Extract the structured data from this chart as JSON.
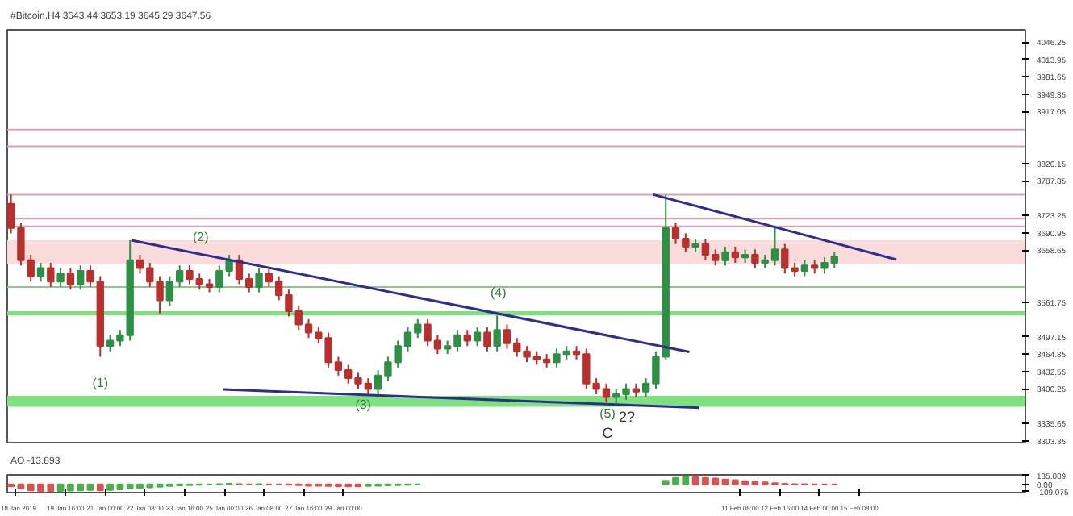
{
  "chart_data": [
    {
      "type": "candlestick",
      "title": "#Bitcoin,H4 3643.44 3653.19 3645.29 3647.56",
      "x": [
        "2019-01-17T20:00",
        "2019-01-18T04:00",
        "2019-01-18T12:00",
        "2019-01-18T20:00",
        "2019-01-19T04:00",
        "2019-01-19T12:00",
        "2019-01-19T20:00",
        "2019-01-20T04:00",
        "2019-01-20T12:00",
        "2019-01-20T20:00",
        "2019-01-21T04:00",
        "2019-01-21T12:00",
        "2019-01-21T20:00",
        "2019-01-22T04:00",
        "2019-01-22T12:00",
        "2019-01-22T20:00",
        "2019-01-23T04:00",
        "2019-01-23T12:00",
        "2019-01-23T20:00",
        "2019-01-24T04:00",
        "2019-01-24T12:00",
        "2019-01-24T20:00",
        "2019-01-25T04:00",
        "2019-01-25T12:00",
        "2019-01-25T20:00",
        "2019-01-26T04:00",
        "2019-01-26T12:00",
        "2019-01-26T20:00",
        "2019-01-27T04:00",
        "2019-01-27T12:00",
        "2019-01-27T20:00",
        "2019-01-28T04:00",
        "2019-01-28T12:00",
        "2019-01-28T20:00",
        "2019-01-29T04:00",
        "2019-01-29T12:00",
        "2019-01-29T20:00",
        "2019-01-30T04:00",
        "2019-01-30T12:00",
        "2019-01-30T20:00",
        "2019-01-31T04:00",
        "2019-01-31T12:00",
        "2019-01-31T20:00",
        "2019-02-01T04:00",
        "2019-02-01T12:00",
        "2019-02-01T20:00",
        "2019-02-02T04:00",
        "2019-02-02T12:00",
        "2019-02-02T20:00",
        "2019-02-03T04:00",
        "2019-02-03T12:00",
        "2019-02-03T20:00",
        "2019-02-04T04:00",
        "2019-02-04T12:00",
        "2019-02-04T20:00",
        "2019-02-05T04:00",
        "2019-02-05T12:00",
        "2019-02-05T20:00",
        "2019-02-06T04:00",
        "2019-02-06T12:00",
        "2019-02-06T20:00",
        "2019-02-07T04:00",
        "2019-02-07T12:00",
        "2019-02-07T20:00",
        "2019-02-08T04:00",
        "2019-02-08T12:00",
        "2019-02-08T20:00",
        "2019-02-09T04:00",
        "2019-02-09T12:00",
        "2019-02-09T20:00",
        "2019-02-10T04:00",
        "2019-02-10T12:00",
        "2019-02-10T20:00",
        "2019-02-11T04:00",
        "2019-02-11T12:00",
        "2019-02-11T20:00",
        "2019-02-12T04:00",
        "2019-02-12T12:00",
        "2019-02-12T20:00",
        "2019-02-13T04:00",
        "2019-02-13T12:00",
        "2019-02-13T20:00",
        "2019-02-14T04:00",
        "2019-02-14T12:00"
      ],
      "ohlc": [
        [
          3745,
          3762,
          3690,
          3700
        ],
        [
          3700,
          3710,
          3630,
          3640
        ],
        [
          3640,
          3650,
          3600,
          3610
        ],
        [
          3610,
          3635,
          3600,
          3625
        ],
        [
          3625,
          3635,
          3590,
          3600
        ],
        [
          3600,
          3625,
          3590,
          3615
        ],
        [
          3615,
          3625,
          3585,
          3595
        ],
        [
          3595,
          3630,
          3585,
          3620
        ],
        [
          3620,
          3630,
          3590,
          3600
        ],
        [
          3600,
          3610,
          3460,
          3480
        ],
        [
          3480,
          3500,
          3470,
          3490
        ],
        [
          3490,
          3510,
          3480,
          3500
        ],
        [
          3500,
          3677,
          3490,
          3640
        ],
        [
          3640,
          3650,
          3615,
          3625
        ],
        [
          3625,
          3635,
          3590,
          3600
        ],
        [
          3600,
          3610,
          3540,
          3565
        ],
        [
          3565,
          3610,
          3555,
          3600
        ],
        [
          3600,
          3630,
          3590,
          3620
        ],
        [
          3620,
          3630,
          3595,
          3605
        ],
        [
          3605,
          3615,
          3585,
          3595
        ],
        [
          3595,
          3605,
          3580,
          3590
        ],
        [
          3590,
          3630,
          3580,
          3620
        ],
        [
          3620,
          3650,
          3610,
          3640
        ],
        [
          3640,
          3650,
          3595,
          3605
        ],
        [
          3605,
          3615,
          3580,
          3590
        ],
        [
          3590,
          3625,
          3580,
          3615
        ],
        [
          3615,
          3625,
          3590,
          3600
        ],
        [
          3600,
          3610,
          3565,
          3575
        ],
        [
          3575,
          3585,
          3535,
          3545
        ],
        [
          3545,
          3555,
          3510,
          3520
        ],
        [
          3520,
          3530,
          3495,
          3505
        ],
        [
          3505,
          3515,
          3485,
          3495
        ],
        [
          3495,
          3505,
          3440,
          3450
        ],
        [
          3450,
          3460,
          3425,
          3435
        ],
        [
          3435,
          3445,
          3410,
          3420
        ],
        [
          3420,
          3430,
          3400,
          3410
        ],
        [
          3410,
          3420,
          3388,
          3400
        ],
        [
          3400,
          3435,
          3390,
          3425
        ],
        [
          3425,
          3460,
          3415,
          3450
        ],
        [
          3450,
          3490,
          3440,
          3480
        ],
        [
          3480,
          3515,
          3470,
          3505
        ],
        [
          3505,
          3530,
          3495,
          3520
        ],
        [
          3520,
          3530,
          3480,
          3490
        ],
        [
          3490,
          3500,
          3465,
          3475
        ],
        [
          3475,
          3490,
          3465,
          3480
        ],
        [
          3480,
          3510,
          3470,
          3500
        ],
        [
          3500,
          3510,
          3480,
          3490
        ],
        [
          3490,
          3515,
          3480,
          3505
        ],
        [
          3505,
          3515,
          3470,
          3480
        ],
        [
          3480,
          3537,
          3470,
          3510
        ],
        [
          3510,
          3520,
          3475,
          3485
        ],
        [
          3485,
          3495,
          3460,
          3470
        ],
        [
          3470,
          3480,
          3450,
          3460
        ],
        [
          3460,
          3470,
          3445,
          3455
        ],
        [
          3455,
          3465,
          3440,
          3450
        ],
        [
          3450,
          3475,
          3440,
          3465
        ],
        [
          3465,
          3480,
          3455,
          3470
        ],
        [
          3470,
          3480,
          3455,
          3465
        ],
        [
          3465,
          3475,
          3400,
          3410
        ],
        [
          3410,
          3420,
          3390,
          3400
        ],
        [
          3400,
          3410,
          3375,
          3385
        ],
        [
          3385,
          3400,
          3372,
          3390
        ],
        [
          3390,
          3410,
          3380,
          3400
        ],
        [
          3400,
          3410,
          3385,
          3395
        ],
        [
          3395,
          3420,
          3385,
          3410
        ],
        [
          3410,
          3470,
          3400,
          3460
        ],
        [
          3460,
          3762,
          3455,
          3700
        ],
        [
          3700,
          3710,
          3670,
          3680
        ],
        [
          3680,
          3690,
          3655,
          3665
        ],
        [
          3665,
          3680,
          3655,
          3670
        ],
        [
          3670,
          3680,
          3640,
          3650
        ],
        [
          3650,
          3660,
          3630,
          3640
        ],
        [
          3640,
          3665,
          3630,
          3655
        ],
        [
          3655,
          3665,
          3635,
          3645
        ],
        [
          3645,
          3660,
          3635,
          3650
        ],
        [
          3650,
          3660,
          3625,
          3635
        ],
        [
          3635,
          3650,
          3625,
          3640
        ],
        [
          3640,
          3700,
          3630,
          3660
        ],
        [
          3660,
          3670,
          3615,
          3625
        ],
        [
          3625,
          3635,
          3610,
          3620
        ],
        [
          3620,
          3640,
          3610,
          3630
        ],
        [
          3630,
          3640,
          3615,
          3625
        ],
        [
          3625,
          3645,
          3615,
          3635
        ],
        [
          3635,
          3655,
          3625,
          3647
        ]
      ],
      "colors": [
        "#b8312f",
        "#b8312f",
        "#b8312f",
        "#2f8f46",
        "#b8312f",
        "#2f8f46",
        "#b8312f",
        "#2f8f46",
        "#b8312f",
        "#b8312f",
        "#2f8f46",
        "#2f8f46",
        "#2f8f46",
        "#b8312f",
        "#b8312f",
        "#b8312f",
        "#2f8f46",
        "#2f8f46",
        "#b8312f",
        "#b8312f",
        "#b8312f",
        "#2f8f46",
        "#2f8f46",
        "#b8312f",
        "#b8312f",
        "#2f8f46",
        "#b8312f",
        "#b8312f",
        "#b8312f",
        "#b8312f",
        "#b8312f",
        "#b8312f",
        "#b8312f",
        "#b8312f",
        "#b8312f",
        "#b8312f",
        "#b8312f",
        "#2f8f46",
        "#2f8f46",
        "#2f8f46",
        "#2f8f46",
        "#2f8f46",
        "#b8312f",
        "#b8312f",
        "#2f8f46",
        "#2f8f46",
        "#b8312f",
        "#2f8f46",
        "#b8312f",
        "#2f8f46",
        "#b8312f",
        "#b8312f",
        "#b8312f",
        "#b8312f",
        "#b8312f",
        "#2f8f46",
        "#2f8f46",
        "#b8312f",
        "#b8312f",
        "#b8312f",
        "#b8312f",
        "#2f8f46",
        "#2f8f46",
        "#b8312f",
        "#2f8f46",
        "#2f8f46",
        "#2f8f46",
        "#b8312f",
        "#b8312f",
        "#2f8f46",
        "#b8312f",
        "#b8312f",
        "#2f8f46",
        "#b8312f",
        "#2f8f46",
        "#b8312f",
        "#2f8f46",
        "#2f8f46",
        "#b8312f",
        "#b8312f",
        "#2f8f46",
        "#b8312f",
        "#2f8f46",
        "#2f8f46"
      ],
      "series": [
        {
          "type": "line",
          "color": "#2e2e8c",
          "x": [
            "2019-01-21T21:00",
            "2019-02-09T15:00"
          ],
          "values": [
            3677,
            3469
          ]
        },
        {
          "type": "line",
          "color": "#2e2e8c",
          "x": [
            "2019-01-24T23:00",
            "2019-02-09T23:00"
          ],
          "values": [
            3399,
            3365
          ]
        },
        {
          "type": "line",
          "color": "#2e2e8c",
          "x": [
            "2019-02-08T10:00",
            "2019-02-16T14:00"
          ],
          "values": [
            3762,
            3641
          ]
        }
      ],
      "ref_lines": [
        {
          "axis": "y",
          "value": 3883,
          "color": "#d8a4ad"
        },
        {
          "axis": "y",
          "value": 3852,
          "color": "#d8a4ad"
        },
        {
          "axis": "y",
          "value": 3762,
          "color": "#d8a4ad"
        },
        {
          "axis": "y",
          "value": 3717,
          "color": "#d8a4ad"
        },
        {
          "axis": "y",
          "value": 3703,
          "color": "#d8a4ad"
        },
        {
          "axis": "y",
          "value": 3590,
          "color": "#8cc88c"
        }
      ],
      "bands": [
        {
          "axis": "y",
          "from": 3632,
          "to": 3677,
          "color": "#fbdcdc"
        },
        {
          "axis": "y",
          "from": 3537,
          "to": 3545,
          "color": "#7fe07f"
        },
        {
          "axis": "y",
          "from": 3367,
          "to": 3387,
          "color": "#7fe07f"
        }
      ],
      "annotations": [
        {
          "text": "(1)",
          "x": "2019-01-20T20:00",
          "y": 3460
        },
        {
          "text": "(2)",
          "x": "2019-01-24T05:00",
          "y": 3683
        },
        {
          "text": "(3)",
          "x": "2019-01-29T16:00",
          "y": 3371
        },
        {
          "text": "(4)",
          "x": "2019-02-03T05:00",
          "y": 3579
        },
        {
          "text": "(5)",
          "x": "2019-02-06T21:00",
          "y": 3354
        },
        "2?",
        "C"
      ],
      "xlim": [
        "2019-01-17T17:00",
        "2019-02-20T22:00"
      ],
      "ylim": [
        3300,
        4069
      ],
      "yticks": [
        4046.25,
        4013.95,
        3981.65,
        3949.35,
        3917.05,
        3820.15,
        3787.85,
        3723.25,
        3690.95,
        3658.65,
        3561.75,
        3497.15,
        3464.85,
        3432.55,
        3400.25,
        3335.65,
        3303.35
      ],
      "tick_labels": "y"
    },
    {
      "type": "bar",
      "title": "AO -13.893",
      "x": [
        "2019-01-17T20:00",
        "2019-01-18T04:00",
        "2019-01-18T12:00",
        "2019-01-18T20:00",
        "2019-01-19T04:00",
        "2019-01-19T12:00",
        "2019-01-19T20:00",
        "2019-01-20T04:00",
        "2019-01-20T12:00",
        "2019-01-20T20:00",
        "2019-01-21T04:00",
        "2019-01-21T12:00",
        "2019-01-21T20:00",
        "2019-01-22T04:00",
        "2019-01-22T12:00",
        "2019-01-22T20:00",
        "2019-01-23T04:00",
        "2019-01-23T12:00",
        "2019-01-23T20:00",
        "2019-01-24T04:00",
        "2019-01-24T12:00",
        "2019-01-24T20:00",
        "2019-01-25T04:00",
        "2019-01-25T12:00",
        "2019-01-25T20:00",
        "2019-01-26T04:00",
        "2019-01-26T12:00",
        "2019-01-26T20:00",
        "2019-01-27T04:00",
        "2019-01-27T12:00",
        "2019-01-27T20:00",
        "2019-01-28T04:00",
        "2019-01-28T12:00",
        "2019-01-28T20:00",
        "2019-01-29T04:00",
        "2019-01-29T12:00",
        "2019-01-29T20:00",
        "2019-01-30T04:00",
        "2019-01-30T12:00",
        "2019-01-30T20:00",
        "2019-01-31T04:00",
        "2019-01-31T12:00",
        "2019-01-31T20:00",
        "2019-02-01T04:00",
        "2019-02-01T12:00",
        "2019-02-01T20:00",
        "2019-02-02T04:00",
        "2019-02-02T12:00",
        "2019-02-02T20:00",
        "2019-02-03T04:00",
        "2019-02-03T12:00",
        "2019-02-03T20:00",
        "2019-02-04T04:00",
        "2019-02-04T12:00",
        "2019-02-04T20:00",
        "2019-02-05T04:00",
        "2019-02-05T12:00",
        "2019-02-05T20:00",
        "2019-02-06T04:00",
        "2019-02-06T12:00",
        "2019-02-06T20:00",
        "2019-02-07T04:00",
        "2019-02-07T12:00",
        "2019-02-07T20:00",
        "2019-02-08T04:00",
        "2019-02-08T12:00",
        "2019-02-08T20:00",
        "2019-02-09T04:00",
        "2019-02-09T12:00",
        "2019-02-09T20:00",
        "2019-02-10T04:00",
        "2019-02-10T12:00",
        "2019-02-10T20:00",
        "2019-02-11T04:00",
        "2019-02-11T12:00",
        "2019-02-11T20:00",
        "2019-02-12T04:00",
        "2019-02-12T12:00",
        "2019-02-12T20:00",
        "2019-02-13T04:00",
        "2019-02-13T12:00",
        "2019-02-13T20:00",
        "2019-02-14T04:00",
        "2019-02-14T12:00"
      ],
      "values": [
        -30,
        -60,
        -90,
        -100,
        -105,
        -100,
        -95,
        -90,
        -85,
        -90,
        -85,
        -75,
        -65,
        -55,
        -45,
        -35,
        -25,
        -15,
        -10,
        -5,
        0,
        5,
        10,
        5,
        0,
        5,
        0,
        0,
        -5,
        -10,
        -20,
        -20,
        -25,
        -30,
        -30,
        -30,
        -25,
        -20,
        -15,
        -10,
        -5,
        0,
        null,
        null,
        null,
        null,
        null,
        null,
        null,
        null,
        null,
        null,
        null,
        null,
        null,
        null,
        null,
        null,
        null,
        null,
        null,
        null,
        null,
        null,
        null,
        null,
        55,
        100,
        120,
        110,
        100,
        90,
        75,
        65,
        50,
        40,
        30,
        20,
        10,
        5,
        5,
        0,
        0,
        0
      ],
      "colors": [
        "#d9534f",
        "#d9534f",
        "#d9534f",
        "#d9534f",
        "#d9534f",
        "#4cae4c",
        "#4cae4c",
        "#4cae4c",
        "#4cae4c",
        "#d9534f",
        "#4cae4c",
        "#4cae4c",
        "#4cae4c",
        "#4cae4c",
        "#4cae4c",
        "#4cae4c",
        "#4cae4c",
        "#4cae4c",
        "#4cae4c",
        "#4cae4c",
        "#4cae4c",
        "#4cae4c",
        "#4cae4c",
        "#d9534f",
        "#d9534f",
        "#4cae4c",
        "#d9534f",
        "#d9534f",
        "#d9534f",
        "#d9534f",
        "#d9534f",
        "#d9534f",
        "#d9534f",
        "#d9534f",
        "#d9534f",
        "#d9534f",
        "#4cae4c",
        "#4cae4c",
        "#4cae4c",
        "#4cae4c",
        "#4cae4c",
        "#4cae4c",
        null,
        null,
        null,
        null,
        null,
        null,
        null,
        null,
        null,
        null,
        null,
        null,
        null,
        null,
        null,
        null,
        null,
        null,
        null,
        null,
        null,
        null,
        null,
        null,
        "#4cae4c",
        "#4cae4c",
        "#4cae4c",
        "#d9534f",
        "#d9534f",
        "#d9534f",
        "#d9534f",
        "#d9534f",
        "#d9534f",
        "#d9534f",
        "#d9534f",
        "#d9534f",
        "#d9534f",
        "#d9534f",
        "#d9534f",
        "#d9534f",
        "#d9534f",
        "#d9534f"
      ],
      "xlim": [
        "2019-01-17T17:00",
        "2019-02-20T22:00"
      ],
      "xticks": [
        {
          "value": "2019-01-18T00:00",
          "label": "18 Jan 2019"
        },
        {
          "value": "2019-01-19T16:00",
          "label": "19 Jan 16:00"
        },
        {
          "value": "2019-01-21T00:00",
          "label": "21 Jan 00:00"
        },
        {
          "value": "2019-01-22T08:00",
          "label": "22 Jan 08:00"
        },
        {
          "value": "2019-01-23T16:00",
          "label": "23 Jan 16:00"
        },
        {
          "value": "2019-01-25T00:00",
          "label": "25 Jan 00:00"
        },
        {
          "value": "2019-01-26T08:00",
          "label": "26 Jan 08:00"
        },
        {
          "value": "2019-01-27T16:00",
          "label": "27 Jan 16:00"
        },
        {
          "value": "2019-01-29T00:00",
          "label": "29 Jan 00:00"
        },
        {
          "value": "2019-02-11T08:00",
          "label": "11 Feb 08:00"
        },
        {
          "value": "2019-02-12T16:00",
          "label": "12 Feb 16:00"
        },
        {
          "value": "2019-02-14T00:00",
          "label": "14 Feb 00:00"
        },
        {
          "value": "2019-02-15T08:00",
          "label": "15 Feb 08:00"
        }
      ],
      "ylim": [
        -125,
        145
      ],
      "yticks": [
        135.089,
        {
          "value": 0,
          "label": "0.00"
        },
        {
          "value": -109.075,
          "label": "-109.075"
        }
      ]
    }
  ]
}
